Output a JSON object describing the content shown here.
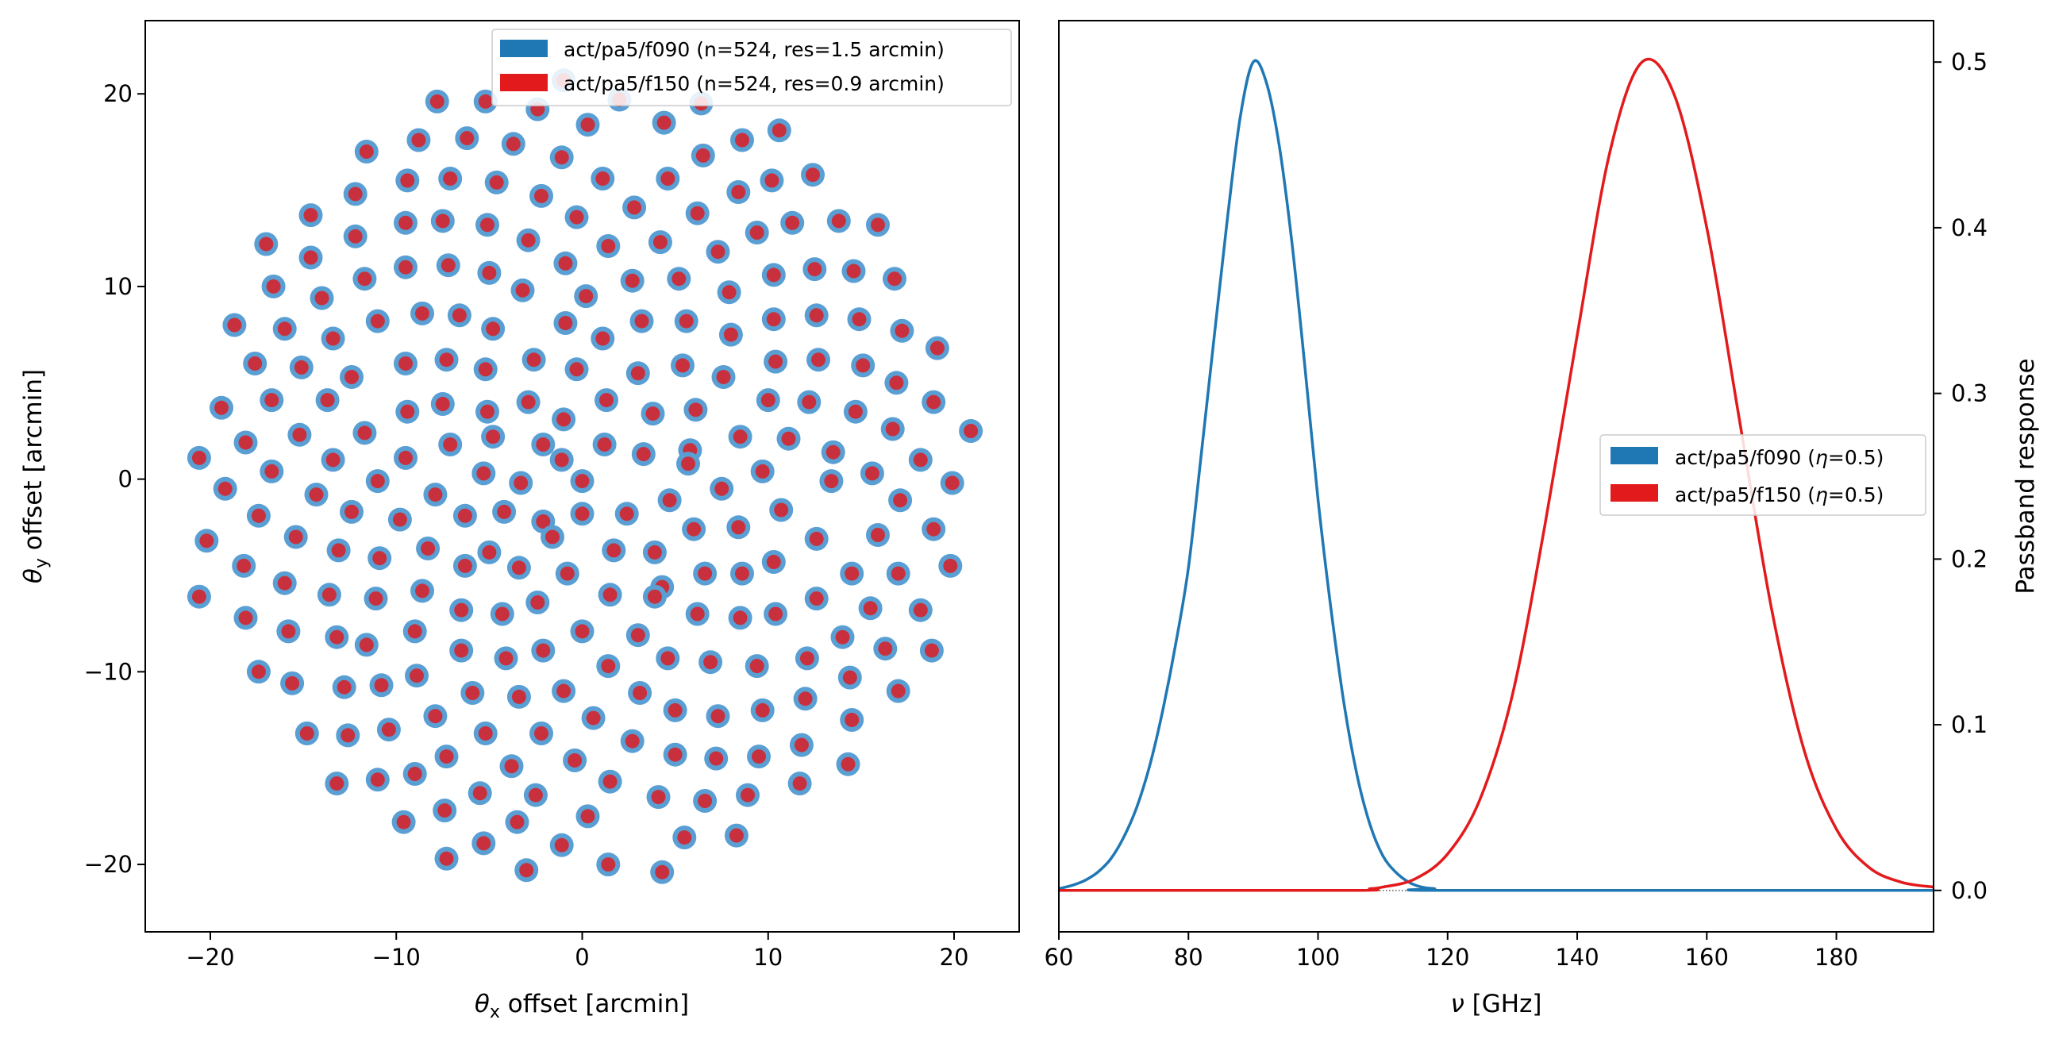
{
  "colors": {
    "f090": "#1f77b4",
    "f150": "#e31a1c",
    "grid_fill": "#5a9fd4",
    "grid_center": "#c9303e"
  },
  "chart_data": [
    {
      "type": "scatter",
      "xlabel_symbol": "θ",
      "xlabel_sub": "x",
      "xlabel_rest": " offset [arcmin]",
      "ylabel_symbol": "θ",
      "ylabel_sub": "y",
      "ylabel_rest": " offset [arcmin]",
      "xlim": [
        -23.5,
        23.5
      ],
      "ylim": [
        -23.5,
        23.8
      ],
      "xticks": [
        -20,
        -10,
        0,
        10,
        20
      ],
      "yticks": [
        -20,
        -10,
        0,
        10,
        20
      ],
      "xtick_labels": [
        "−20",
        "−10",
        "0",
        "10",
        "20"
      ],
      "ytick_labels": [
        "−20",
        "−10",
        "0",
        "10",
        "20"
      ],
      "grid": false,
      "legend_position": "top-right",
      "legend": [
        {
          "label": "act/pa5/f090 (n=524, res=1.5 arcmin)",
          "color": "#1f77b4"
        },
        {
          "label": "act/pa5/f150 (n=524, res=0.9 arcmin)",
          "color": "#e31a1c"
        }
      ],
      "series": [
        {
          "name": "act/pa5/f090 (n=524, res=1.5 arcmin)",
          "role": "outer-marker"
        },
        {
          "name": "act/pa5/f150 (n=524, res=0.9 arcmin)",
          "role": "inner-marker"
        }
      ],
      "points": [
        [
          -7.8,
          19.6
        ],
        [
          -5.2,
          19.6
        ],
        [
          -1,
          20.7
        ],
        [
          2,
          19.7
        ],
        [
          6.4,
          19.5
        ],
        [
          -2.4,
          19.2
        ],
        [
          0.3,
          18.4
        ],
        [
          4.4,
          18.5
        ],
        [
          -11.6,
          17
        ],
        [
          -8.8,
          17.6
        ],
        [
          -6.2,
          17.7
        ],
        [
          -3.7,
          17.4
        ],
        [
          8.6,
          17.6
        ],
        [
          10.6,
          18.1
        ],
        [
          -1.1,
          16.7
        ],
        [
          6.5,
          16.8
        ],
        [
          -7.1,
          15.6
        ],
        [
          -9.4,
          15.5
        ],
        [
          -4.6,
          15.4
        ],
        [
          1.1,
          15.6
        ],
        [
          4.6,
          15.6
        ],
        [
          10.2,
          15.5
        ],
        [
          12.4,
          15.8
        ],
        [
          -12.2,
          14.8
        ],
        [
          -2.2,
          14.7
        ],
        [
          8.4,
          14.9
        ],
        [
          -14.6,
          13.7
        ],
        [
          -7.5,
          13.4
        ],
        [
          -5.1,
          13.2
        ],
        [
          -9.5,
          13.3
        ],
        [
          -0.3,
          13.6
        ],
        [
          2.8,
          14.1
        ],
        [
          6.2,
          13.8
        ],
        [
          11.3,
          13.3
        ],
        [
          13.8,
          13.4
        ],
        [
          15.9,
          13.2
        ],
        [
          -12.2,
          12.6
        ],
        [
          -2.9,
          12.4
        ],
        [
          4.2,
          12.3
        ],
        [
          -17,
          12.2
        ],
        [
          -14.6,
          11.5
        ],
        [
          -9.5,
          11
        ],
        [
          -7.2,
          11.1
        ],
        [
          -5,
          10.7
        ],
        [
          1.4,
          12.1
        ],
        [
          7.3,
          11.8
        ],
        [
          9.4,
          12.8
        ],
        [
          -0.9,
          11.2
        ],
        [
          -11.7,
          10.4
        ],
        [
          12.5,
          10.9
        ],
        [
          14.6,
          10.8
        ],
        [
          16.8,
          10.4
        ],
        [
          2.7,
          10.3
        ],
        [
          5.2,
          10.4
        ],
        [
          10.3,
          10.6
        ],
        [
          -16.6,
          10
        ],
        [
          -3.2,
          9.8
        ],
        [
          0.2,
          9.5
        ],
        [
          -14,
          9.4
        ],
        [
          -8.6,
          8.6
        ],
        [
          -6.6,
          8.5
        ],
        [
          -11,
          8.2
        ],
        [
          7.9,
          9.7
        ],
        [
          -18.7,
          8
        ],
        [
          -16,
          7.8
        ],
        [
          -4.8,
          7.8
        ],
        [
          -0.9,
          8.1
        ],
        [
          3.2,
          8.2
        ],
        [
          5.6,
          8.2
        ],
        [
          10.3,
          8.3
        ],
        [
          12.6,
          8.5
        ],
        [
          14.9,
          8.3
        ],
        [
          17.2,
          7.7
        ],
        [
          -13.4,
          7.3
        ],
        [
          1.1,
          7.3
        ],
        [
          8,
          7.5
        ],
        [
          19.1,
          6.8
        ],
        [
          -17.6,
          6
        ],
        [
          -15.1,
          5.8
        ],
        [
          -9.5,
          6
        ],
        [
          -7.3,
          6.2
        ],
        [
          -2.6,
          6.2
        ],
        [
          -12.4,
          5.3
        ],
        [
          -5.2,
          5.7
        ],
        [
          -0.3,
          5.7
        ],
        [
          3,
          5.5
        ],
        [
          5.4,
          5.9
        ],
        [
          10.4,
          6.1
        ],
        [
          12.7,
          6.2
        ],
        [
          15.1,
          5.9
        ],
        [
          7.6,
          5.3
        ],
        [
          16.9,
          5
        ],
        [
          -19.4,
          3.7
        ],
        [
          -16.7,
          4.1
        ],
        [
          -13.7,
          4.1
        ],
        [
          -9.4,
          3.5
        ],
        [
          -7.5,
          3.9
        ],
        [
          -5.1,
          3.5
        ],
        [
          -2.9,
          4
        ],
        [
          1.3,
          4.1
        ],
        [
          3.8,
          3.4
        ],
        [
          6.1,
          3.6
        ],
        [
          10,
          4.1
        ],
        [
          12.2,
          4
        ],
        [
          14.7,
          3.5
        ],
        [
          18.9,
          4
        ],
        [
          -1,
          3.1
        ],
        [
          8.5,
          2.2
        ],
        [
          -18.1,
          1.9
        ],
        [
          -15.2,
          2.3
        ],
        [
          -11.7,
          2.4
        ],
        [
          -7.1,
          1.8
        ],
        [
          -4.8,
          2.2
        ],
        [
          -2.1,
          1.8
        ],
        [
          1.2,
          1.8
        ],
        [
          3.3,
          1.3
        ],
        [
          5.8,
          1.5
        ],
        [
          11.1,
          2.1
        ],
        [
          13.5,
          1.4
        ],
        [
          16.7,
          2.6
        ],
        [
          20.9,
          2.5
        ],
        [
          -20.6,
          1.1
        ],
        [
          -13.4,
          1
        ],
        [
          -9.5,
          1.1
        ],
        [
          -1.1,
          1
        ],
        [
          -16.7,
          0.4
        ],
        [
          -5.3,
          0.3
        ],
        [
          -3.3,
          -0.2
        ],
        [
          -11,
          -0.1
        ],
        [
          0,
          -0.1
        ],
        [
          5.7,
          0.8
        ],
        [
          9.7,
          0.4
        ],
        [
          15.6,
          0.3
        ],
        [
          18.2,
          1
        ],
        [
          -19.2,
          -0.5
        ],
        [
          -14.3,
          -0.8
        ],
        [
          -7.9,
          -0.8
        ],
        [
          7.5,
          -0.5
        ],
        [
          13.4,
          -0.1
        ],
        [
          19.9,
          -0.2
        ],
        [
          -17.4,
          -1.9
        ],
        [
          -12.4,
          -1.7
        ],
        [
          -9.8,
          -2.1
        ],
        [
          -4.2,
          -1.7
        ],
        [
          -2.1,
          -2.2
        ],
        [
          0,
          -1.8
        ],
        [
          2.4,
          -1.8
        ],
        [
          4.7,
          -1.1
        ],
        [
          10.7,
          -1.6
        ],
        [
          17.1,
          -1.1
        ],
        [
          -6.3,
          -1.9
        ],
        [
          -15.4,
          -3
        ],
        [
          -20.2,
          -3.2
        ],
        [
          -13.1,
          -3.7
        ],
        [
          -8.3,
          -3.6
        ],
        [
          -5,
          -3.8
        ],
        [
          -1.6,
          -3
        ],
        [
          1.7,
          -3.7
        ],
        [
          3.9,
          -3.8
        ],
        [
          6,
          -2.6
        ],
        [
          8.4,
          -2.5
        ],
        [
          12.6,
          -3.1
        ],
        [
          15.9,
          -2.9
        ],
        [
          18.9,
          -2.6
        ],
        [
          -18.2,
          -4.5
        ],
        [
          -10.9,
          -4.1
        ],
        [
          -6.3,
          -4.5
        ],
        [
          -3.4,
          -4.6
        ],
        [
          -0.8,
          -4.9
        ],
        [
          10.3,
          -4.3
        ],
        [
          14.5,
          -4.9
        ],
        [
          17,
          -4.9
        ],
        [
          19.8,
          -4.5
        ],
        [
          -16,
          -5.4
        ],
        [
          -8.6,
          -5.8
        ],
        [
          4.3,
          -5.6
        ],
        [
          6.6,
          -4.9
        ],
        [
          8.6,
          -4.9
        ],
        [
          -20.6,
          -6.1
        ],
        [
          -13.6,
          -6
        ],
        [
          -11.1,
          -6.2
        ],
        [
          -2.4,
          -6.4
        ],
        [
          -18.1,
          -7.2
        ],
        [
          -6.5,
          -6.8
        ],
        [
          -4.3,
          -7
        ],
        [
          0,
          -7.9
        ],
        [
          1.5,
          -6
        ],
        [
          3.9,
          -6.1
        ],
        [
          6.2,
          -7
        ],
        [
          8.5,
          -7.2
        ],
        [
          10.4,
          -7
        ],
        [
          12.6,
          -6.2
        ],
        [
          15.5,
          -6.7
        ],
        [
          18.2,
          -6.8
        ],
        [
          -15.8,
          -7.9
        ],
        [
          -13.2,
          -8.2
        ],
        [
          -11.6,
          -8.6
        ],
        [
          -9,
          -7.9
        ],
        [
          -6.5,
          -8.9
        ],
        [
          -4.1,
          -9.3
        ],
        [
          -2.1,
          -8.9
        ],
        [
          3,
          -8.1
        ],
        [
          14,
          -8.2
        ],
        [
          16.3,
          -8.8
        ],
        [
          18.8,
          -8.9
        ],
        [
          -17.4,
          -10
        ],
        [
          -15.6,
          -10.6
        ],
        [
          -12.8,
          -10.8
        ],
        [
          -10.8,
          -10.7
        ],
        [
          -8.9,
          -10.2
        ],
        [
          -5.9,
          -11.1
        ],
        [
          -3.4,
          -11.3
        ],
        [
          -1,
          -11
        ],
        [
          1.4,
          -9.7
        ],
        [
          4.6,
          -9.3
        ],
        [
          6.9,
          -9.5
        ],
        [
          9.4,
          -9.7
        ],
        [
          12.1,
          -9.3
        ],
        [
          14.4,
          -10.3
        ],
        [
          17,
          -11
        ],
        [
          -10.4,
          -13
        ],
        [
          -7.9,
          -12.3
        ],
        [
          -5.2,
          -13.2
        ],
        [
          -2.2,
          -13.2
        ],
        [
          0.6,
          -12.4
        ],
        [
          3.1,
          -11.1
        ],
        [
          5,
          -12
        ],
        [
          7.3,
          -12.3
        ],
        [
          9.7,
          -12
        ],
        [
          12,
          -11.4
        ],
        [
          -14.8,
          -13.2
        ],
        [
          -12.6,
          -13.3
        ],
        [
          -7.3,
          -14.4
        ],
        [
          -3.8,
          -14.9
        ],
        [
          -0.4,
          -14.6
        ],
        [
          2.7,
          -13.6
        ],
        [
          5,
          -14.3
        ],
        [
          7.2,
          -14.5
        ],
        [
          9.5,
          -14.4
        ],
        [
          14.5,
          -12.5
        ],
        [
          11.8,
          -13.8
        ],
        [
          14.3,
          -14.8
        ],
        [
          -13.2,
          -15.8
        ],
        [
          -11,
          -15.6
        ],
        [
          -9,
          -15.3
        ],
        [
          -5.5,
          -16.3
        ],
        [
          -2.5,
          -16.4
        ],
        [
          1.5,
          -15.7
        ],
        [
          4.1,
          -16.5
        ],
        [
          6.6,
          -16.7
        ],
        [
          8.9,
          -16.4
        ],
        [
          11.7,
          -15.8
        ],
        [
          -9.6,
          -17.8
        ],
        [
          -7.4,
          -17.2
        ],
        [
          -3.5,
          -17.8
        ],
        [
          0.3,
          -17.5
        ],
        [
          5.5,
          -18.6
        ],
        [
          8.3,
          -18.5
        ],
        [
          -7.3,
          -19.7
        ],
        [
          -5.3,
          -18.9
        ],
        [
          -1.1,
          -19
        ],
        [
          1.4,
          -20
        ],
        [
          -3,
          -20.3
        ],
        [
          4.3,
          -20.4
        ]
      ]
    },
    {
      "type": "line",
      "xlabel_symbol": "ν",
      "xlabel_rest": " [GHz]",
      "ylabel": "Passband response",
      "xlim": [
        60,
        195
      ],
      "ylim": [
        -0.025,
        0.525
      ],
      "xticks": [
        60,
        80,
        100,
        120,
        140,
        160,
        180
      ],
      "yticks": [
        0,
        0.1,
        0.2,
        0.3,
        0.4,
        0.5
      ],
      "xtick_labels": [
        "60",
        "80",
        "100",
        "120",
        "140",
        "160",
        "180"
      ],
      "ytick_labels": [
        "0.0",
        "0.1",
        "0.2",
        "0.3",
        "0.4",
        "0.5"
      ],
      "yaxis_side": "right",
      "grid": false,
      "legend_position": "center-right",
      "legend": [
        {
          "label_prefix": "act/pa5/f090 (",
          "eta": "η",
          "label_suffix": "=0.5)",
          "color": "#1f77b4"
        },
        {
          "label_prefix": "act/pa5/f150 (",
          "eta": "η",
          "label_suffix": "=0.5)",
          "color": "#e31a1c"
        }
      ],
      "series": [
        {
          "name": "act/pa5/f090",
          "color": "#1f77b4",
          "x": [
            60,
            62,
            64,
            66,
            68,
            70,
            72,
            74,
            76,
            78,
            80,
            82,
            84,
            86,
            88,
            90,
            92,
            94,
            96,
            98,
            100,
            102,
            104,
            106,
            108,
            110,
            112,
            114,
            116,
            118,
            120,
            195
          ],
          "y": [
            0.001,
            0.003,
            0.006,
            0.011,
            0.019,
            0.032,
            0.05,
            0.075,
            0.108,
            0.148,
            0.195,
            0.264,
            0.335,
            0.405,
            0.467,
            0.5,
            0.488,
            0.45,
            0.39,
            0.315,
            0.236,
            0.17,
            0.113,
            0.07,
            0.04,
            0.021,
            0.011,
            0.005,
            0.002,
            0.001,
            0.0,
            0.0
          ]
        },
        {
          "name": "act/pa5/f150",
          "color": "#e31a1c",
          "x": [
            60,
            105,
            108,
            110,
            115,
            120,
            125,
            130,
            135,
            140,
            145,
            150,
            155,
            160,
            165,
            170,
            175,
            180,
            185,
            190,
            195
          ],
          "y": [
            0.0,
            0.0,
            0.001,
            0.002,
            0.007,
            0.022,
            0.055,
            0.118,
            0.22,
            0.335,
            0.445,
            0.5,
            0.48,
            0.4,
            0.285,
            0.17,
            0.085,
            0.037,
            0.014,
            0.005,
            0.002
          ]
        }
      ]
    }
  ]
}
